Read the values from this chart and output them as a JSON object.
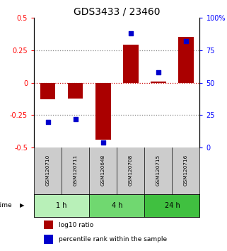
{
  "title": "GDS3433 / 23460",
  "samples": [
    "GSM120710",
    "GSM120711",
    "GSM120648",
    "GSM120708",
    "GSM120715",
    "GSM120716"
  ],
  "log10_ratio": [
    -0.13,
    -0.12,
    -0.44,
    0.29,
    0.01,
    0.35
  ],
  "percentile_rank": [
    20,
    22,
    4,
    88,
    58,
    82
  ],
  "groups": [
    {
      "label": "1 h",
      "samples": [
        "GSM120710",
        "GSM120711"
      ],
      "color": "#b8f0b8"
    },
    {
      "label": "4 h",
      "samples": [
        "GSM120648",
        "GSM120708"
      ],
      "color": "#70d870"
    },
    {
      "label": "24 h",
      "samples": [
        "GSM120715",
        "GSM120716"
      ],
      "color": "#40c040"
    }
  ],
  "bar_color": "#aa0000",
  "dot_color": "#0000cc",
  "left_ylim": [
    -0.5,
    0.5
  ],
  "right_ylim": [
    0,
    100
  ],
  "left_yticks": [
    -0.5,
    -0.25,
    0,
    0.25,
    0.5
  ],
  "left_yticklabels": [
    "-0.5",
    "-0.25",
    "0",
    "0.25",
    "0.5"
  ],
  "right_yticks": [
    0,
    25,
    50,
    75,
    100
  ],
  "right_yticklabels": [
    "0",
    "25",
    "50",
    "75",
    "100%"
  ],
  "dotted_lines": [
    -0.25,
    0.25
  ],
  "zero_line_value": 0,
  "zero_line_color": "#cc0000",
  "grid_line_color": "#888888",
  "sample_box_color": "#cccccc",
  "title_fontsize": 10,
  "tick_fontsize": 7,
  "bar_width": 0.55
}
